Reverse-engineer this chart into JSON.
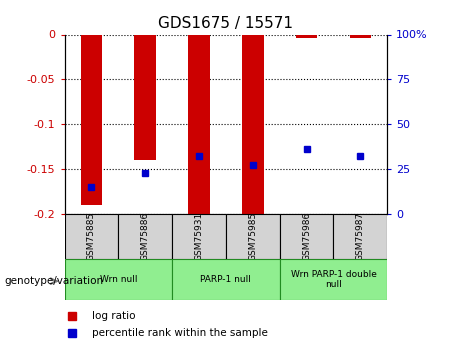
{
  "title": "GDS1675 / 15571",
  "samples": [
    "GSM75885",
    "GSM75886",
    "GSM75931",
    "GSM75985",
    "GSM75986",
    "GSM75987"
  ],
  "log_ratios": [
    -0.19,
    -0.14,
    -0.2,
    -0.2,
    -0.004,
    -0.004
  ],
  "percentile_ranks": [
    15,
    23,
    32,
    27,
    36,
    32
  ],
  "bar_color": "#cc0000",
  "dot_color": "#0000cc",
  "ylim_left": [
    -0.2,
    0
  ],
  "ylim_right": [
    0,
    100
  ],
  "yticks_left": [
    0,
    -0.05,
    -0.1,
    -0.15,
    -0.2
  ],
  "yticks_right": [
    0,
    25,
    50,
    75,
    100
  ],
  "groups": [
    {
      "label": "Wrn null",
      "start": 0,
      "end": 2
    },
    {
      "label": "PARP-1 null",
      "start": 2,
      "end": 4
    },
    {
      "label": "Wrn PARP-1 double\nnull",
      "start": 4,
      "end": 6
    }
  ],
  "group_color": "#90EE90",
  "group_border_color": "#228B22",
  "sample_box_color": "#d3d3d3",
  "legend_items": [
    {
      "label": "log ratio",
      "color": "#cc0000"
    },
    {
      "label": "percentile rank within the sample",
      "color": "#0000cc"
    }
  ],
  "bar_width": 0.4,
  "genotype_label": "genotype/variation"
}
